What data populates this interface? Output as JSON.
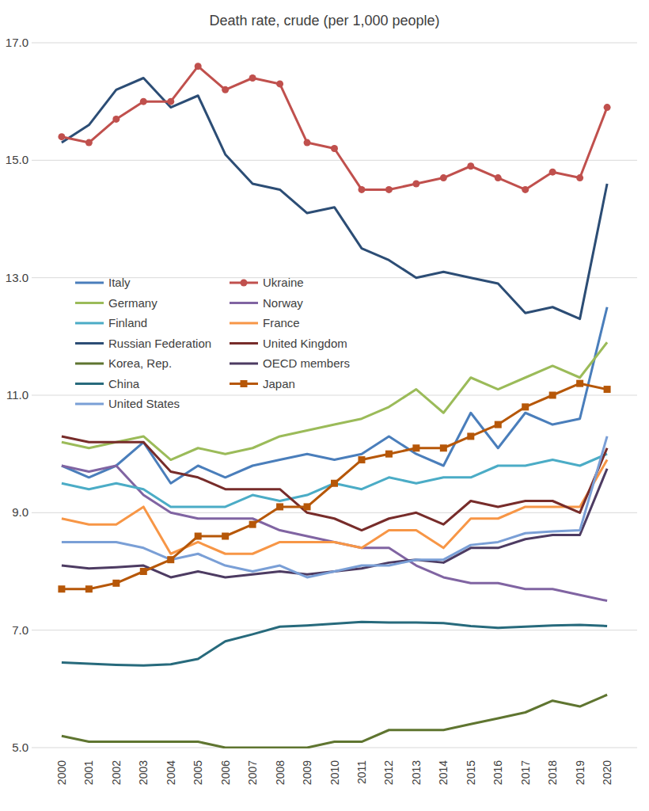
{
  "chart_data": {
    "type": "line",
    "title": "Death rate, crude (per 1,000 people)",
    "categories": [
      "2000",
      "2001",
      "2002",
      "2003",
      "2004",
      "2005",
      "2006",
      "2007",
      "2008",
      "2009",
      "2010",
      "2011",
      "2012",
      "2013",
      "2014",
      "2015",
      "2016",
      "2017",
      "2018",
      "2019",
      "2020"
    ],
    "ylim": [
      5,
      17
    ],
    "yticks": [
      {
        "value": 5,
        "label": "5.0"
      },
      {
        "value": 7,
        "label": "7.0"
      },
      {
        "value": 9,
        "label": "9.0"
      },
      {
        "value": 11,
        "label": "11.0"
      },
      {
        "value": 13,
        "label": "13.0"
      },
      {
        "value": 15,
        "label": "15.0"
      },
      {
        "value": 17,
        "label": "17.0"
      }
    ],
    "grid": true,
    "legend": "left",
    "series": [
      {
        "name": "Italy",
        "color": "#4a7ebb",
        "marker": "none",
        "line_style": "solid",
        "values": [
          9.8,
          9.6,
          9.8,
          10.2,
          9.5,
          9.8,
          9.6,
          9.8,
          9.9,
          10.0,
          9.9,
          10.0,
          10.3,
          10.0,
          9.8,
          10.7,
          10.1,
          10.7,
          10.5,
          10.6,
          12.5
        ]
      },
      {
        "name": "Ukraine",
        "color": "#c0504d",
        "marker": "circle",
        "line_style": "solid",
        "values": [
          15.4,
          15.3,
          15.7,
          16.0,
          16.0,
          16.6,
          16.2,
          16.4,
          16.3,
          15.3,
          15.2,
          14.5,
          14.5,
          14.6,
          14.7,
          14.9,
          14.7,
          14.5,
          14.8,
          14.7,
          15.9
        ]
      },
      {
        "name": "Germany",
        "color": "#9bbb59",
        "marker": "none",
        "line_style": "solid",
        "values": [
          10.2,
          10.1,
          10.2,
          10.3,
          9.9,
          10.1,
          10.0,
          10.1,
          10.3,
          10.4,
          10.5,
          10.6,
          10.8,
          11.1,
          10.7,
          11.3,
          11.1,
          11.3,
          11.5,
          11.3,
          11.9
        ]
      },
      {
        "name": "Norway",
        "color": "#8064a2",
        "marker": "none",
        "line_style": "solid",
        "values": [
          9.8,
          9.7,
          9.8,
          9.3,
          9.0,
          8.9,
          8.9,
          8.9,
          8.7,
          8.6,
          8.5,
          8.4,
          8.4,
          8.1,
          7.9,
          7.8,
          7.8,
          7.7,
          7.7,
          7.6,
          7.5
        ]
      },
      {
        "name": "Finland",
        "color": "#4bacc6",
        "marker": "none",
        "line_style": "solid",
        "values": [
          9.5,
          9.4,
          9.5,
          9.4,
          9.1,
          9.1,
          9.1,
          9.3,
          9.2,
          9.3,
          9.5,
          9.4,
          9.6,
          9.5,
          9.6,
          9.6,
          9.8,
          9.8,
          9.9,
          9.8,
          10.0
        ]
      },
      {
        "name": "France",
        "color": "#f79646",
        "marker": "none",
        "line_style": "solid",
        "values": [
          8.9,
          8.8,
          8.8,
          9.1,
          8.3,
          8.5,
          8.3,
          8.3,
          8.5,
          8.5,
          8.5,
          8.4,
          8.7,
          8.7,
          8.4,
          8.9,
          8.9,
          9.1,
          9.1,
          9.1,
          9.9
        ]
      },
      {
        "name": "Russian Federation",
        "color": "#2c4d75",
        "marker": "none",
        "line_style": "solid",
        "values": [
          15.3,
          15.6,
          16.2,
          16.4,
          15.9,
          16.1,
          15.1,
          14.6,
          14.5,
          14.1,
          14.2,
          13.5,
          13.3,
          13.0,
          13.1,
          13.0,
          12.9,
          12.4,
          12.5,
          12.3,
          14.6
        ]
      },
      {
        "name": "United Kingdom",
        "color": "#772c2a",
        "marker": "none",
        "line_style": "solid",
        "values": [
          10.3,
          10.2,
          10.2,
          10.2,
          9.7,
          9.6,
          9.4,
          9.4,
          9.4,
          9.0,
          8.9,
          8.7,
          8.9,
          9.0,
          8.8,
          9.2,
          9.1,
          9.2,
          9.2,
          9.0,
          10.1
        ]
      },
      {
        "name": "Korea, Rep.",
        "color": "#5f7530",
        "marker": "none",
        "line_style": "solid",
        "values": [
          5.2,
          5.1,
          5.1,
          5.1,
          5.1,
          5.1,
          5.0,
          5.0,
          5.0,
          5.0,
          5.1,
          5.1,
          5.3,
          5.3,
          5.3,
          5.4,
          5.5,
          5.6,
          5.8,
          5.7,
          5.9
        ]
      },
      {
        "name": "OECD members",
        "color": "#4d3b62",
        "marker": "none",
        "line_style": "solid",
        "values": [
          8.1,
          8.05,
          8.07,
          8.1,
          7.9,
          8.0,
          7.9,
          7.95,
          8.0,
          7.95,
          8.0,
          8.05,
          8.15,
          8.2,
          8.15,
          8.4,
          8.4,
          8.55,
          8.62,
          8.62,
          9.75
        ]
      },
      {
        "name": "China",
        "color": "#276a7c",
        "marker": "none",
        "line_style": "solid",
        "values": [
          6.45,
          6.43,
          6.41,
          6.4,
          6.42,
          6.51,
          6.81,
          6.93,
          7.06,
          7.08,
          7.11,
          7.14,
          7.13,
          7.13,
          7.12,
          7.07,
          7.04,
          7.06,
          7.08,
          7.09,
          7.07
        ]
      },
      {
        "name": "Japan",
        "color": "#b65708",
        "marker": "square",
        "line_style": "solid",
        "values": [
          7.7,
          7.7,
          7.8,
          8.0,
          8.2,
          8.6,
          8.6,
          8.8,
          9.1,
          9.1,
          9.5,
          9.9,
          10.0,
          10.1,
          10.1,
          10.3,
          10.5,
          10.8,
          11.0,
          11.2,
          11.1
        ]
      },
      {
        "name": "United States",
        "color": "#7a9fd6",
        "marker": "none",
        "line_style": "solid",
        "values": [
          8.5,
          8.5,
          8.5,
          8.4,
          8.2,
          8.3,
          8.1,
          8.0,
          8.1,
          7.9,
          8.0,
          8.1,
          8.1,
          8.2,
          8.2,
          8.45,
          8.5,
          8.65,
          8.68,
          8.7,
          10.3
        ]
      }
    ]
  }
}
